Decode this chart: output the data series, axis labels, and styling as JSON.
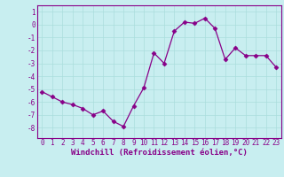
{
  "x": [
    0,
    1,
    2,
    3,
    4,
    5,
    6,
    7,
    8,
    9,
    10,
    11,
    12,
    13,
    14,
    15,
    16,
    17,
    18,
    19,
    20,
    21,
    22,
    23
  ],
  "y": [
    -5.2,
    -5.6,
    -6.0,
    -6.2,
    -6.5,
    -7.0,
    -6.7,
    -7.5,
    -7.9,
    -6.3,
    -4.9,
    -2.2,
    -3.0,
    -0.5,
    0.2,
    0.1,
    0.5,
    -0.3,
    -2.7,
    -1.8,
    -2.4,
    -2.4,
    -2.4,
    -3.3
  ],
  "line_color": "#880088",
  "marker": "D",
  "marker_size": 2.5,
  "bg_color": "#c8eef0",
  "grid_color": "#aadddd",
  "xlabel": "Windchill (Refroidissement éolien,°C)",
  "xlim": [
    -0.5,
    23.5
  ],
  "ylim": [
    -8.8,
    1.5
  ],
  "yticks": [
    -8,
    -7,
    -6,
    -5,
    -4,
    -3,
    -2,
    -1,
    0,
    1
  ],
  "xticks": [
    0,
    1,
    2,
    3,
    4,
    5,
    6,
    7,
    8,
    9,
    10,
    11,
    12,
    13,
    14,
    15,
    16,
    17,
    18,
    19,
    20,
    21,
    22,
    23
  ],
  "tick_label_size": 5.5,
  "xlabel_size": 6.5
}
